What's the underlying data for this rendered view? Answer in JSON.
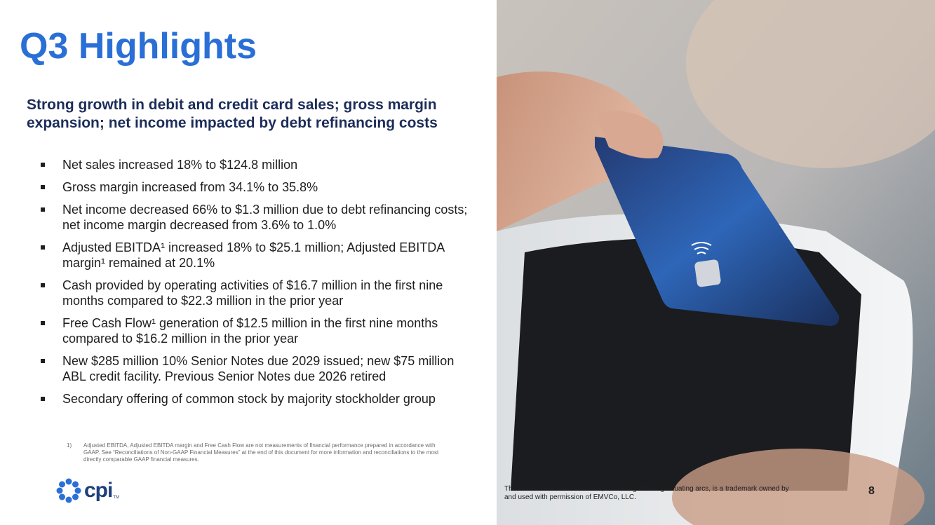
{
  "slide": {
    "title": "Q3 Highlights",
    "subtitle": "Strong growth in debit and credit card sales; gross margin expansion; net income impacted by debt refinancing costs",
    "bullets": [
      "Net sales increased 18% to $124.8 million",
      "Gross margin increased from 34.1% to 35.8%",
      "Net income decreased 66% to $1.3 million due to debt refinancing costs; net income margin decreased from 3.6% to 1.0%",
      "Adjusted EBITDA¹ increased 18% to $25.1 million; Adjusted EBITDA margin¹ remained at 20.1%",
      "Cash provided by operating activities of $16.7 million in the first nine months compared to $22.3 million in the prior year",
      "Free Cash Flow¹ generation of $12.5 million in the first nine months compared to $16.2 million in the prior year",
      "New $285 million 10% Senior Notes due 2029 issued; new $75 million ABL credit facility. Previous Senior Notes due 2026 retired",
      "Secondary offering of common stock by majority stockholder group"
    ],
    "footnote": {
      "number": "1)",
      "text": "Adjusted EBITDA, Adjusted EBITDA margin and Free Cash Flow are not measurements of financial performance prepared in accordance with GAAP. See “Reconciliations of Non-GAAP Financial Measures” at the end of this document for more information and reconciliations to the most directly comparable GAAP financial measures."
    },
    "logo": {
      "word": "cpi",
      "tm": "TM",
      "icon": "cpi-logo-icon"
    },
    "trademark_note": "The Contactless Indicator mark, consisting of four graduating arcs, is a trademark owned by and used with permission of EMVCo, LLC.",
    "page_number": "8"
  },
  "colors": {
    "title": "#2a6fd6",
    "subtitle": "#1c2d5a",
    "logo": "#2a6fd6",
    "card": "#1f3a7a"
  }
}
